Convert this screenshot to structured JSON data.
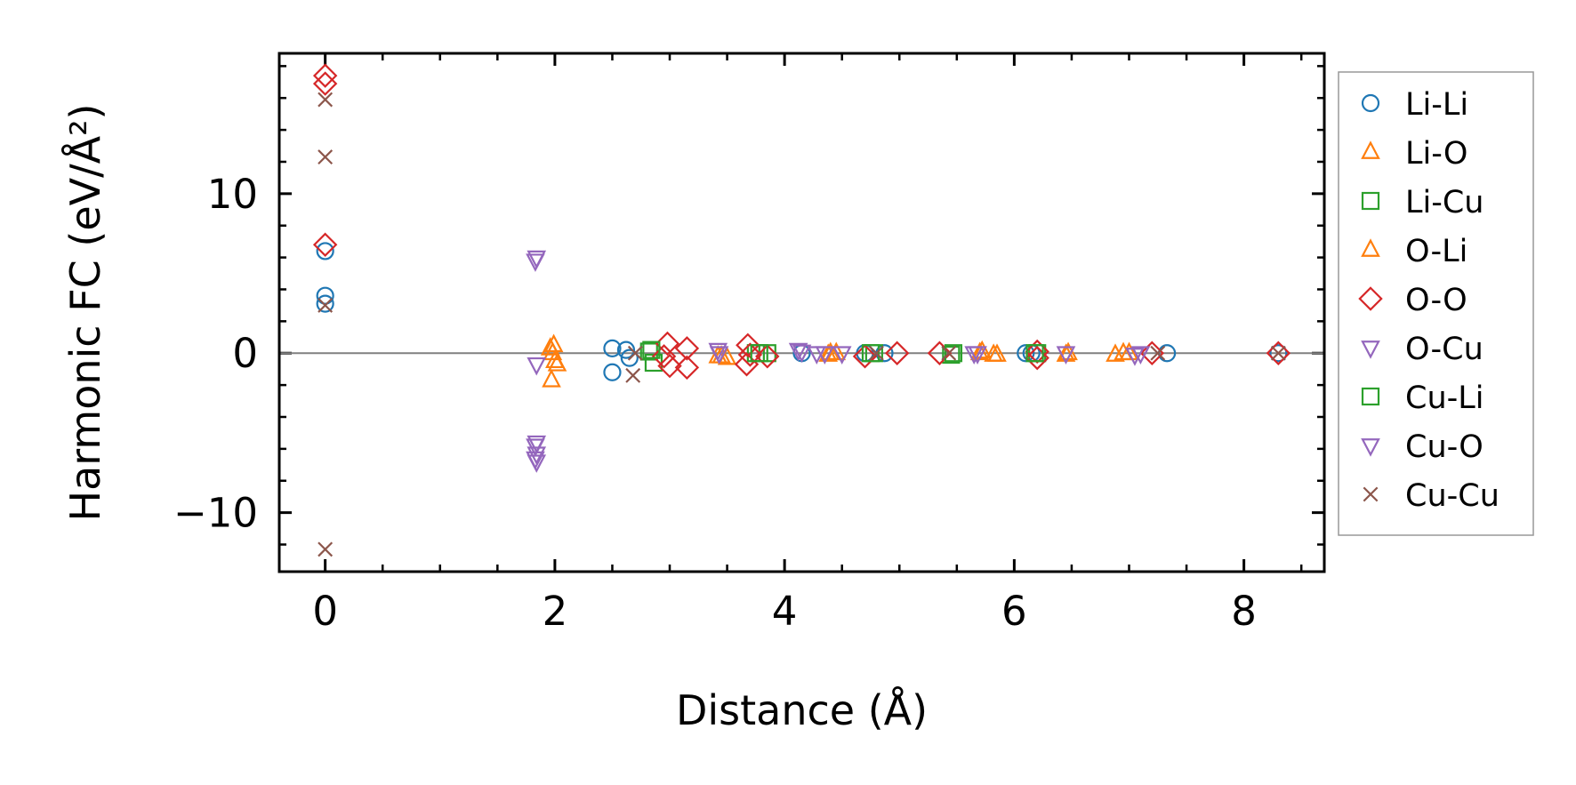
{
  "chart_data": {
    "type": "scatter",
    "title": "",
    "xlabel": "Distance (Å)",
    "ylabel": "Harmonic FC (eV/Å²)",
    "xlim": [
      -0.4,
      8.7
    ],
    "ylim": [
      -13.7,
      18.8
    ],
    "xticks": [
      0,
      2,
      4,
      6,
      8
    ],
    "xtick_labels": [
      "0",
      "2",
      "4",
      "6",
      "8"
    ],
    "yticks": [
      -10,
      0,
      10
    ],
    "ytick_labels": [
      "−10",
      "0",
      "10"
    ],
    "zero_line": true,
    "grid": false,
    "legend_position": "outside-right",
    "series": [
      {
        "name": "Li-Li",
        "marker": "circle",
        "color": "#1f77b4",
        "points": [
          [
            0.0,
            6.4
          ],
          [
            0.0,
            3.6
          ],
          [
            0.0,
            3.1
          ],
          [
            2.5,
            0.3
          ],
          [
            2.5,
            -1.2
          ],
          [
            2.62,
            0.2
          ],
          [
            2.65,
            -0.3
          ],
          [
            4.15,
            0.0
          ],
          [
            4.7,
            0.0
          ],
          [
            4.87,
            0.0
          ],
          [
            6.1,
            0.0
          ],
          [
            6.15,
            0.0
          ],
          [
            7.33,
            0.0
          ],
          [
            8.3,
            0.0
          ]
        ]
      },
      {
        "name": "Li-O",
        "marker": "triangle-up",
        "color": "#ff7f0e",
        "points": [
          [
            1.96,
            0.3
          ],
          [
            1.98,
            0.0
          ],
          [
            2.0,
            -0.5
          ],
          [
            1.97,
            -1.7
          ],
          [
            3.42,
            -0.2
          ],
          [
            3.5,
            -0.3
          ],
          [
            4.38,
            -0.1
          ],
          [
            4.45,
            0.0
          ],
          [
            5.7,
            0.0
          ],
          [
            5.85,
            -0.1
          ],
          [
            6.45,
            -0.1
          ],
          [
            6.88,
            -0.1
          ],
          [
            7.0,
            0.0
          ]
        ]
      },
      {
        "name": "Li-Cu",
        "marker": "square",
        "color": "#2ca02c",
        "points": [
          [
            2.82,
            0.1
          ],
          [
            2.86,
            -0.6
          ],
          [
            3.75,
            0.0
          ],
          [
            3.85,
            0.0
          ],
          [
            4.78,
            0.0
          ],
          [
            5.45,
            -0.1
          ],
          [
            6.2,
            0.0
          ]
        ]
      },
      {
        "name": "O-Li",
        "marker": "triangle-up",
        "color": "#ff7f0e",
        "points": [
          [
            1.99,
            0.5
          ],
          [
            2.02,
            -0.7
          ],
          [
            3.45,
            -0.2
          ],
          [
            4.4,
            0.0
          ],
          [
            5.72,
            0.1
          ],
          [
            5.82,
            -0.1
          ],
          [
            6.47,
            0.0
          ],
          [
            6.95,
            0.0
          ]
        ]
      },
      {
        "name": "O-O",
        "marker": "diamond",
        "color": "#d62728",
        "points": [
          [
            0.0,
            17.4
          ],
          [
            0.0,
            16.9
          ],
          [
            0.0,
            6.8
          ],
          [
            2.98,
            0.6
          ],
          [
            2.95,
            -0.2
          ],
          [
            3.0,
            -0.8
          ],
          [
            3.15,
            0.3
          ],
          [
            3.15,
            -0.9
          ],
          [
            3.68,
            0.5
          ],
          [
            3.7,
            -0.1
          ],
          [
            3.67,
            -0.7
          ],
          [
            3.85,
            -0.2
          ],
          [
            4.7,
            -0.2
          ],
          [
            4.98,
            0.0
          ],
          [
            5.35,
            0.0
          ],
          [
            6.2,
            0.1
          ],
          [
            6.2,
            -0.3
          ],
          [
            7.2,
            0.0
          ],
          [
            8.3,
            0.0
          ]
        ]
      },
      {
        "name": "O-Cu",
        "marker": "triangle-down",
        "color": "#9467bd",
        "points": [
          [
            1.84,
            6.0
          ],
          [
            1.84,
            -0.7
          ],
          [
            1.84,
            -5.6
          ],
          [
            1.84,
            -6.3
          ],
          [
            1.84,
            -6.8
          ],
          [
            3.42,
            0.2
          ],
          [
            4.12,
            0.2
          ],
          [
            4.28,
            0.0
          ],
          [
            4.5,
            0.0
          ],
          [
            5.65,
            0.0
          ],
          [
            6.45,
            0.0
          ],
          [
            7.1,
            0.0
          ]
        ]
      },
      {
        "name": "Cu-Li",
        "marker": "square",
        "color": "#2ca02c",
        "points": [
          [
            2.84,
            0.2
          ],
          [
            3.78,
            0.0
          ],
          [
            4.75,
            0.0
          ],
          [
            5.47,
            0.0
          ],
          [
            6.18,
            0.0
          ]
        ]
      },
      {
        "name": "Cu-O",
        "marker": "triangle-down",
        "color": "#9467bd",
        "points": [
          [
            1.83,
            5.8
          ],
          [
            1.83,
            -5.8
          ],
          [
            1.83,
            -6.6
          ],
          [
            3.43,
            0.0
          ],
          [
            4.15,
            0.1
          ],
          [
            4.35,
            0.0
          ],
          [
            5.68,
            0.0
          ],
          [
            7.05,
            -0.1
          ]
        ]
      },
      {
        "name": "Cu-Cu",
        "marker": "x",
        "color": "#8c564b",
        "points": [
          [
            0.0,
            15.9
          ],
          [
            0.0,
            12.3
          ],
          [
            0.0,
            3.0
          ],
          [
            0.0,
            -12.3
          ],
          [
            2.68,
            -1.4
          ],
          [
            2.7,
            0.0
          ],
          [
            4.8,
            0.0
          ],
          [
            5.43,
            0.0
          ],
          [
            7.25,
            0.0
          ],
          [
            8.3,
            0.0
          ]
        ]
      }
    ]
  }
}
